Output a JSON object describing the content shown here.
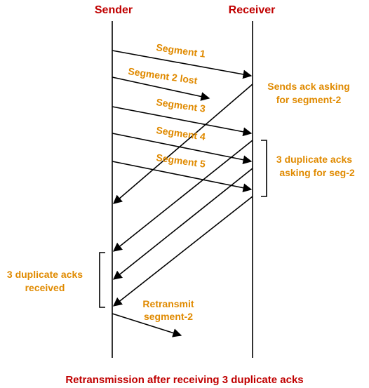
{
  "headers": {
    "sender": "Sender",
    "receiver": "Receiver"
  },
  "segments": {
    "seg1": "Segment 1",
    "seg2": "Segment 2 lost",
    "seg3": "Segment 3",
    "seg4": "Segment 4",
    "seg5": "Segment 5"
  },
  "receiver_notes": {
    "ack_line1": "Sends ack asking",
    "ack_line2": "for segment-2",
    "dup_line1": "3 duplicate acks",
    "dup_line2": "asking for seg-2"
  },
  "sender_notes": {
    "dup_line1": "3 duplicate acks",
    "dup_line2": "received",
    "retx_line1": "Retransmit",
    "retx_line2": "segment-2"
  },
  "caption": "Retransmission after receiving 3 duplicate acks",
  "colors": {
    "title": "#c00000",
    "label": "#e08a00",
    "line": "#000000"
  }
}
